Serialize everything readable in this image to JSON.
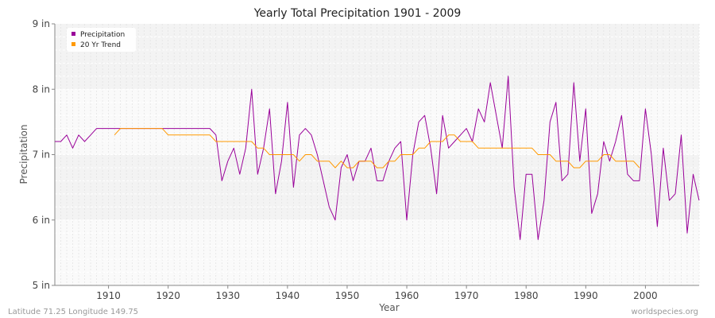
{
  "chart_data": {
    "type": "line",
    "title": "Yearly Total Precipitation 1901 - 2009",
    "xlabel": "Year",
    "ylabel": "Precipitation",
    "xlim": [
      1901,
      2009
    ],
    "ylim": [
      5,
      9
    ],
    "x_ticks": [
      1910,
      1920,
      1930,
      1940,
      1950,
      1960,
      1970,
      1980,
      1990,
      2000
    ],
    "y_ticks": [
      {
        "value": 5,
        "label": "5 in"
      },
      {
        "value": 6,
        "label": "6 in"
      },
      {
        "value": 7,
        "label": "7 in"
      },
      {
        "value": 8,
        "label": "8 in"
      },
      {
        "value": 9,
        "label": "9 in"
      }
    ],
    "grid": true,
    "legend_position": "top-left",
    "series": [
      {
        "name": "Precipitation",
        "color": "#990099",
        "x": [
          1901,
          1902,
          1903,
          1904,
          1905,
          1906,
          1907,
          1908,
          1909,
          1910,
          1911,
          1912,
          1913,
          1914,
          1915,
          1916,
          1917,
          1918,
          1919,
          1920,
          1921,
          1922,
          1923,
          1924,
          1925,
          1926,
          1927,
          1928,
          1929,
          1930,
          1931,
          1932,
          1933,
          1934,
          1935,
          1936,
          1937,
          1938,
          1939,
          1940,
          1941,
          1942,
          1943,
          1944,
          1945,
          1946,
          1947,
          1948,
          1949,
          1950,
          1951,
          1952,
          1953,
          1954,
          1955,
          1956,
          1957,
          1958,
          1959,
          1960,
          1961,
          1962,
          1963,
          1964,
          1965,
          1966,
          1967,
          1968,
          1969,
          1970,
          1971,
          1972,
          1973,
          1974,
          1975,
          1976,
          1977,
          1978,
          1979,
          1980,
          1981,
          1982,
          1983,
          1984,
          1985,
          1986,
          1987,
          1988,
          1989,
          1990,
          1991,
          1992,
          1993,
          1994,
          1995,
          1996,
          1997,
          1998,
          1999,
          2000,
          2001,
          2002,
          2003,
          2004,
          2005,
          2006,
          2007,
          2008,
          2009
        ],
        "values": [
          7.2,
          7.2,
          7.3,
          7.1,
          7.3,
          7.2,
          7.3,
          7.4,
          7.4,
          7.4,
          7.4,
          7.4,
          7.4,
          7.4,
          7.4,
          7.4,
          7.4,
          7.4,
          7.4,
          7.4,
          7.4,
          7.4,
          7.4,
          7.4,
          7.4,
          7.4,
          7.4,
          7.3,
          6.6,
          6.9,
          7.1,
          6.7,
          7.1,
          8.0,
          6.7,
          7.1,
          7.7,
          6.4,
          6.9,
          7.8,
          6.5,
          7.3,
          7.4,
          7.3,
          7.0,
          6.6,
          6.2,
          6.0,
          6.8,
          7.0,
          6.6,
          6.9,
          6.9,
          7.1,
          6.6,
          6.6,
          6.9,
          7.1,
          7.2,
          6.0,
          7.0,
          7.5,
          7.6,
          7.1,
          6.4,
          7.6,
          7.1,
          7.2,
          7.3,
          7.4,
          7.2,
          7.7,
          7.5,
          8.1,
          7.6,
          7.1,
          8.2,
          6.5,
          5.7,
          6.7,
          6.7,
          5.7,
          6.3,
          7.5,
          7.8,
          6.6,
          6.7,
          8.1,
          6.9,
          7.7,
          6.1,
          6.4,
          7.2,
          6.9,
          7.2,
          7.6,
          6.7,
          6.6,
          6.6,
          7.7,
          7.0,
          5.9,
          7.1,
          6.3,
          6.4,
          7.3,
          5.8,
          6.7,
          6.3
        ]
      },
      {
        "name": "20 Yr Trend",
        "color": "#ff9900",
        "x": [
          1911,
          1912,
          1913,
          1914,
          1915,
          1916,
          1917,
          1918,
          1919,
          1920,
          1921,
          1922,
          1923,
          1924,
          1925,
          1926,
          1927,
          1928,
          1929,
          1930,
          1931,
          1932,
          1933,
          1934,
          1935,
          1936,
          1937,
          1938,
          1939,
          1940,
          1941,
          1942,
          1943,
          1944,
          1945,
          1946,
          1947,
          1948,
          1949,
          1950,
          1951,
          1952,
          1953,
          1954,
          1955,
          1956,
          1957,
          1958,
          1959,
          1960,
          1961,
          1962,
          1963,
          1964,
          1965,
          1966,
          1967,
          1968,
          1969,
          1970,
          1971,
          1972,
          1973,
          1974,
          1975,
          1976,
          1977,
          1978,
          1979,
          1980,
          1981,
          1982,
          1983,
          1984,
          1985,
          1986,
          1987,
          1988,
          1989,
          1990,
          1991,
          1992,
          1993,
          1994,
          1995,
          1996,
          1997,
          1998,
          1999
        ],
        "values": [
          7.3,
          7.4,
          7.4,
          7.4,
          7.4,
          7.4,
          7.4,
          7.4,
          7.4,
          7.3,
          7.3,
          7.3,
          7.3,
          7.3,
          7.3,
          7.3,
          7.3,
          7.2,
          7.2,
          7.2,
          7.2,
          7.2,
          7.2,
          7.2,
          7.1,
          7.1,
          7.0,
          7.0,
          7.0,
          7.0,
          7.0,
          6.9,
          7.0,
          7.0,
          6.9,
          6.9,
          6.9,
          6.8,
          6.9,
          6.8,
          6.8,
          6.9,
          6.9,
          6.9,
          6.8,
          6.8,
          6.9,
          6.9,
          7.0,
          7.0,
          7.0,
          7.1,
          7.1,
          7.2,
          7.2,
          7.2,
          7.3,
          7.3,
          7.2,
          7.2,
          7.2,
          7.1,
          7.1,
          7.1,
          7.1,
          7.1,
          7.1,
          7.1,
          7.1,
          7.1,
          7.1,
          7.0,
          7.0,
          7.0,
          6.9,
          6.9,
          6.9,
          6.8,
          6.8,
          6.9,
          6.9,
          6.9,
          7.0,
          7.0,
          6.9,
          6.9,
          6.9,
          6.9,
          6.8
        ]
      }
    ]
  },
  "footer": {
    "left": "Latitude 71.25 Longitude 149.75",
    "right": "worldspecies.org"
  }
}
